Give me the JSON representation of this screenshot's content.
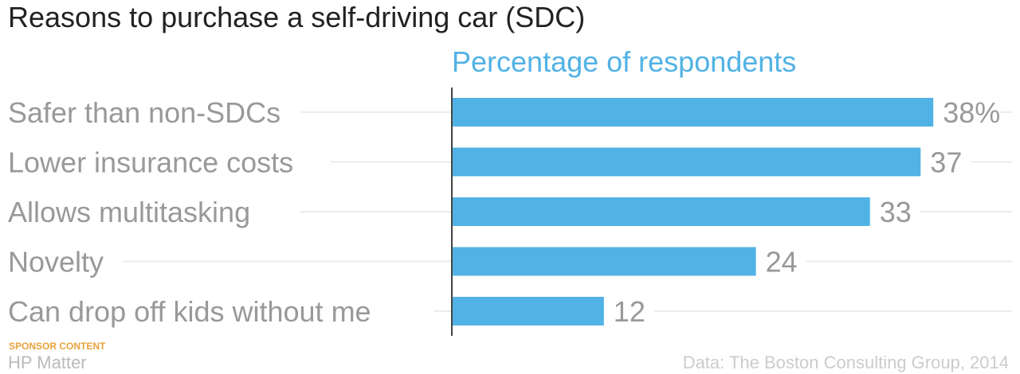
{
  "chart_data": {
    "type": "bar",
    "orientation": "horizontal",
    "title": "Reasons to purchase a self-driving car (SDC)",
    "subtitle": "Percentage of respondents",
    "categories": [
      "Safer than non-SDCs",
      "Lower insurance costs",
      "Allows multitasking",
      "Novelty",
      "Can drop off kids without me"
    ],
    "values": [
      38,
      37,
      33,
      24,
      12
    ],
    "value_labels": [
      "38%",
      "37",
      "33",
      "24",
      "12"
    ],
    "xlim": [
      0,
      40
    ],
    "grid": false,
    "bar_color": "#51b2e5"
  },
  "footer": {
    "sponsor_tag": "SPONSOR CONTENT",
    "brand": "HP Matter",
    "source": "Data: The Boston Consulting Group, 2014"
  },
  "colors": {
    "accent": "#51b2e5",
    "title": "#222222",
    "label": "#999999",
    "sponsor": "#e8a33d"
  }
}
